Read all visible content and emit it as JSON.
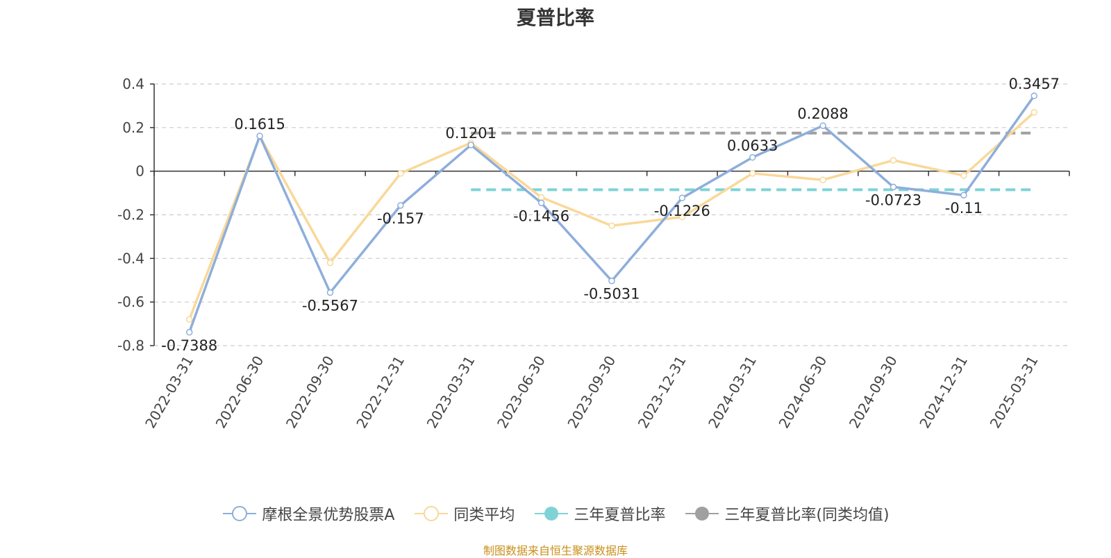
{
  "chart_data": {
    "type": "line",
    "title": "夏普比率",
    "categories": [
      "2022-03-31",
      "2022-06-30",
      "2022-09-30",
      "2022-12-31",
      "2023-03-31",
      "2023-06-30",
      "2023-09-30",
      "2023-12-31",
      "2024-03-31",
      "2024-06-30",
      "2024-09-30",
      "2024-12-31",
      "2025-03-31"
    ],
    "series": [
      {
        "name": "摩根全景优势股票A",
        "color": "#8eaedb",
        "values": [
          -0.7388,
          0.1615,
          -0.5567,
          -0.157,
          0.1201,
          -0.1456,
          -0.5031,
          -0.1226,
          0.0633,
          0.2088,
          -0.0723,
          -0.11,
          0.3457
        ],
        "labels": [
          "-0.7388",
          "0.1615",
          "-0.5567",
          "-0.157",
          "0.1201",
          "-0.1456",
          "-0.5031",
          "-0.1226",
          "0.0633",
          "0.2088",
          "-0.0723",
          "-0.11",
          "0.3457"
        ]
      },
      {
        "name": "同类平均",
        "color": "#f9d898",
        "values": [
          -0.68,
          0.16,
          -0.42,
          -0.01,
          0.13,
          -0.12,
          -0.25,
          -0.21,
          -0.01,
          -0.04,
          0.05,
          -0.02,
          0.27
        ]
      }
    ],
    "reference_lines": [
      {
        "name": "三年夏普比率",
        "color": "#7fd3d6",
        "value": -0.085,
        "from": "2023-03-31",
        "to": "2025-03-31"
      },
      {
        "name": "三年夏普比率(同类均值)",
        "color": "#a0a0a0",
        "value": 0.175,
        "from": "2023-03-31",
        "to": "2025-03-31"
      }
    ],
    "ylim": [
      -0.8,
      0.4
    ],
    "yticks": [
      "0.4",
      "0.2",
      "0",
      "-0.2",
      "-0.4",
      "-0.6",
      "-0.8"
    ],
    "grid": true,
    "legend_position": "bottom"
  },
  "source_text": "制图数据来自恒生聚源数据库"
}
